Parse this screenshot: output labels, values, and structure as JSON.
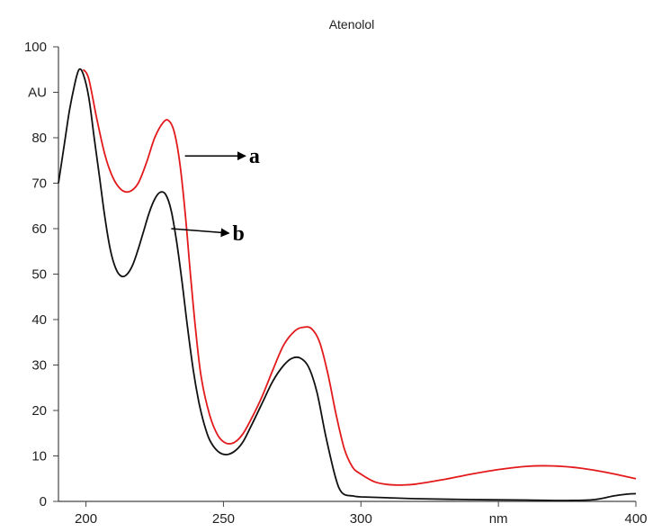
{
  "chart_data": {
    "type": "line",
    "title": "Atenolol",
    "xlabel": "nm",
    "ylabel": "AU",
    "xlim": [
      190,
      400
    ],
    "ylim": [
      0,
      100
    ],
    "x_ticks": [
      {
        "value": 200,
        "label": "200"
      },
      {
        "value": 250,
        "label": "250"
      },
      {
        "value": 300,
        "label": "300"
      },
      {
        "value": 350,
        "label": "nm"
      },
      {
        "value": 400,
        "label": "400"
      }
    ],
    "y_ticks": [
      {
        "value": 0,
        "label": "0"
      },
      {
        "value": 10,
        "label": "10"
      },
      {
        "value": 20,
        "label": "20"
      },
      {
        "value": 30,
        "label": "30"
      },
      {
        "value": 40,
        "label": "40"
      },
      {
        "value": 50,
        "label": "50"
      },
      {
        "value": 60,
        "label": "60"
      },
      {
        "value": 70,
        "label": "70"
      },
      {
        "value": 80,
        "label": "80"
      },
      {
        "value": 90,
        "label": "AU"
      },
      {
        "value": 100,
        "label": "100"
      }
    ],
    "grid": false,
    "series": [
      {
        "name": "a",
        "color": "#e31a1c",
        "points": [
          [
            199,
            95
          ],
          [
            201,
            93
          ],
          [
            204,
            84
          ],
          [
            207,
            76
          ],
          [
            210,
            71
          ],
          [
            213,
            68.5
          ],
          [
            216,
            68.2
          ],
          [
            219,
            70
          ],
          [
            222,
            74.5
          ],
          [
            225,
            80
          ],
          [
            228,
            83.3
          ],
          [
            230,
            83.8
          ],
          [
            232,
            81.5
          ],
          [
            234,
            75
          ],
          [
            236,
            64
          ],
          [
            238,
            50
          ],
          [
            240,
            37
          ],
          [
            242,
            27
          ],
          [
            245,
            19
          ],
          [
            248,
            14.5
          ],
          [
            251,
            12.8
          ],
          [
            254,
            13
          ],
          [
            257,
            14.8
          ],
          [
            260,
            18
          ],
          [
            264,
            23
          ],
          [
            268,
            29
          ],
          [
            272,
            34.5
          ],
          [
            276,
            37.5
          ],
          [
            279,
            38.3
          ],
          [
            282,
            38
          ],
          [
            285,
            35
          ],
          [
            288,
            28
          ],
          [
            291,
            19
          ],
          [
            294,
            11.5
          ],
          [
            297,
            7.5
          ],
          [
            300,
            6
          ],
          [
            305,
            4.3
          ],
          [
            310,
            3.7
          ],
          [
            315,
            3.6
          ],
          [
            320,
            3.8
          ],
          [
            330,
            4.8
          ],
          [
            340,
            6
          ],
          [
            350,
            7
          ],
          [
            360,
            7.7
          ],
          [
            370,
            7.8
          ],
          [
            380,
            7.3
          ],
          [
            390,
            6.3
          ],
          [
            400,
            5
          ]
        ]
      },
      {
        "name": "b",
        "color": "#111111",
        "points": [
          [
            190,
            70
          ],
          [
            192,
            78
          ],
          [
            194,
            86
          ],
          [
            196,
            92
          ],
          [
            197.5,
            95
          ],
          [
            199,
            94
          ],
          [
            201,
            89
          ],
          [
            203,
            80
          ],
          [
            205,
            71
          ],
          [
            207,
            62
          ],
          [
            209,
            55
          ],
          [
            211,
            51
          ],
          [
            213,
            49.5
          ],
          [
            215,
            50
          ],
          [
            217,
            52
          ],
          [
            219,
            55.5
          ],
          [
            221,
            59.5
          ],
          [
            223,
            63.5
          ],
          [
            225,
            66.5
          ],
          [
            227,
            68
          ],
          [
            229,
            67.5
          ],
          [
            231,
            64
          ],
          [
            233,
            57
          ],
          [
            235,
            48
          ],
          [
            237,
            38
          ],
          [
            239,
            29
          ],
          [
            241,
            22
          ],
          [
            243,
            17
          ],
          [
            245,
            13.5
          ],
          [
            248,
            11
          ],
          [
            251,
            10.3
          ],
          [
            254,
            11
          ],
          [
            257,
            13
          ],
          [
            260,
            16.5
          ],
          [
            264,
            21.5
          ],
          [
            268,
            26.5
          ],
          [
            272,
            30
          ],
          [
            275,
            31.5
          ],
          [
            278,
            31.5
          ],
          [
            281,
            29.5
          ],
          [
            284,
            24
          ],
          [
            287,
            15
          ],
          [
            290,
            7
          ],
          [
            292,
            3
          ],
          [
            294,
            1.5
          ],
          [
            297,
            1.2
          ],
          [
            300,
            1
          ],
          [
            310,
            0.8
          ],
          [
            320,
            0.6
          ],
          [
            340,
            0.4
          ],
          [
            360,
            0.3
          ],
          [
            375,
            0.2
          ],
          [
            385,
            0.4
          ],
          [
            392,
            1.2
          ],
          [
            397,
            1.6
          ],
          [
            400,
            1.7
          ]
        ]
      }
    ],
    "annotations": [
      {
        "label": "a",
        "series": "a",
        "from": [
          236,
          76
        ],
        "to": [
          258,
          76
        ]
      },
      {
        "label": "b",
        "series": "b",
        "from": [
          231,
          60
        ],
        "to": [
          252,
          59
        ]
      }
    ]
  }
}
